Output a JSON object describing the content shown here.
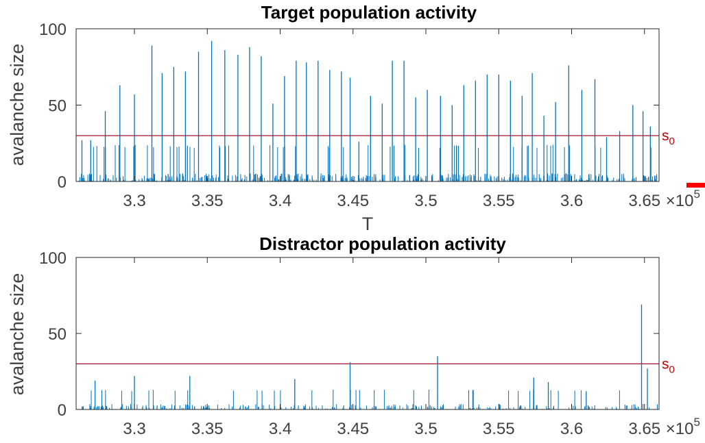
{
  "chart_data": [
    {
      "type": "bar",
      "title": "Target population activity",
      "xlabel": "T",
      "ylabel": "avalanche size",
      "xlim": [
        326000,
        366000
      ],
      "ylim": [
        0,
        100
      ],
      "xticks": [
        330000,
        335000,
        340000,
        345000,
        350000,
        355000,
        360000,
        365000
      ],
      "xtick_labels": [
        "3.3",
        "3.35",
        "3.4",
        "3.45",
        "3.5",
        "3.55",
        "3.6",
        "3.65"
      ],
      "x_exponent_base": "×10",
      "x_exponent": "5",
      "yticks": [
        0,
        50,
        100
      ],
      "ytick_labels": [
        "0",
        "50",
        "100"
      ],
      "grid": false,
      "threshold": {
        "name": "s",
        "subscript": "0",
        "value": 30
      },
      "series": [
        {
          "x": [
            326400,
            327000,
            328000,
            329000,
            330000,
            331200,
            331900,
            332700,
            333500,
            334400,
            335300,
            336200,
            337100,
            337900,
            338700,
            339500,
            340300,
            341100,
            341800,
            342600,
            343400,
            344200,
            344800,
            345400,
            346200,
            347000,
            347700,
            348500,
            349300,
            350100,
            351000,
            351800,
            352600,
            353400,
            354200,
            355000,
            355800,
            356600,
            357300,
            358100,
            358900,
            359800,
            360700,
            361600,
            362400,
            363300,
            364200,
            364900,
            365400
          ],
          "values": [
            27,
            27,
            46,
            63,
            57,
            89,
            71,
            75,
            72,
            85,
            92,
            86,
            83,
            88,
            82,
            51,
            69,
            79,
            78,
            79,
            73,
            72,
            68,
            26,
            56,
            51,
            79,
            79,
            55,
            60,
            56,
            50,
            63,
            66,
            70,
            70,
            66,
            56,
            71,
            43,
            52,
            76,
            60,
            67,
            29,
            33,
            50,
            46,
            36
          ]
        }
      ]
    },
    {
      "type": "bar",
      "title": "Distractor population activity",
      "ylabel": "avalanche size",
      "xlim": [
        326000,
        366000
      ],
      "ylim": [
        0,
        100
      ],
      "xticks": [
        330000,
        335000,
        340000,
        345000,
        350000,
        355000,
        360000,
        365000
      ],
      "xtick_labels": [
        "3.3",
        "3.35",
        "3.4",
        "3.45",
        "3.5",
        "3.55",
        "3.6",
        "3.65"
      ],
      "x_exponent_base": "×10",
      "x_exponent": "5",
      "yticks": [
        0,
        50,
        100
      ],
      "ytick_labels": [
        "0",
        "50",
        "100"
      ],
      "grid": false,
      "threshold": {
        "name": "s",
        "subscript": "0",
        "value": 30
      },
      "series": [
        {
          "x": [
            327300,
            330000,
            333800,
            341000,
            344800,
            350800,
            357400,
            358400,
            361000,
            364800,
            365200
          ],
          "values": [
            19,
            22,
            22,
            20,
            31,
            35,
            21,
            18,
            12,
            69,
            27
          ]
        }
      ]
    }
  ],
  "colors": {
    "series": "#0072bd",
    "threshold": "#a2142f",
    "threshold_label": "#c00000",
    "axis": "#262626",
    "marker": "#ff0000"
  }
}
